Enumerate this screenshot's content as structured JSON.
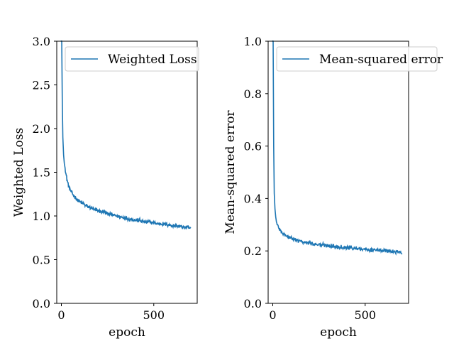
{
  "chart_data": [
    {
      "type": "line",
      "title": "",
      "xlabel": "epoch",
      "ylabel": "Weighted Loss",
      "xlim": [
        -25,
        735
      ],
      "ylim": [
        0.0,
        3.0
      ],
      "x_ticks": [
        0,
        500
      ],
      "x_tick_labels": [
        "0",
        "500"
      ],
      "y_ticks": [
        0.0,
        0.5,
        1.0,
        1.5,
        2.0,
        2.5,
        3.0
      ],
      "y_tick_labels": [
        "0.0",
        "0.5",
        "1.0",
        "1.5",
        "2.0",
        "2.5",
        "3.0"
      ],
      "grid": false,
      "legend": "top-right",
      "series": [
        {
          "name": "Weighted Loss",
          "color": "#1f77b4",
          "x": [
            0,
            2,
            5,
            8,
            12,
            16,
            20,
            25,
            30,
            35,
            40,
            50,
            60,
            70,
            80,
            90,
            100,
            120,
            140,
            160,
            180,
            200,
            220,
            240,
            260,
            280,
            300,
            320,
            340,
            360,
            380,
            400,
            420,
            440,
            460,
            480,
            500,
            520,
            540,
            560,
            580,
            600,
            620,
            640,
            660,
            680,
            700
          ],
          "y": [
            3.0,
            3.0,
            2.3,
            1.9,
            1.7,
            1.6,
            1.55,
            1.48,
            1.42,
            1.38,
            1.34,
            1.29,
            1.25,
            1.23,
            1.2,
            1.18,
            1.16,
            1.14,
            1.11,
            1.09,
            1.07,
            1.06,
            1.05,
            1.04,
            1.02,
            1.01,
            1.0,
            0.99,
            0.98,
            0.97,
            0.96,
            0.95,
            0.95,
            0.94,
            0.93,
            0.93,
            0.92,
            0.91,
            0.91,
            0.9,
            0.9,
            0.89,
            0.89,
            0.88,
            0.87,
            0.87,
            0.86
          ]
        }
      ]
    },
    {
      "type": "line",
      "title": "",
      "xlabel": "epoch",
      "ylabel": "Mean-squared error",
      "xlim": [
        -25,
        735
      ],
      "ylim": [
        0.0,
        1.0
      ],
      "x_ticks": [
        0,
        500
      ],
      "x_tick_labels": [
        "0",
        "500"
      ],
      "y_ticks": [
        0.0,
        0.2,
        0.4,
        0.6,
        0.8,
        1.0
      ],
      "y_tick_labels": [
        "0.0",
        "0.2",
        "0.4",
        "0.6",
        "0.8",
        "1.0"
      ],
      "grid": false,
      "legend": "top-right",
      "series": [
        {
          "name": "Mean-squared error",
          "color": "#1f77b4",
          "x": [
            0,
            2,
            5,
            8,
            12,
            16,
            20,
            25,
            30,
            35,
            40,
            50,
            60,
            70,
            80,
            90,
            100,
            120,
            140,
            160,
            180,
            200,
            220,
            240,
            260,
            280,
            300,
            320,
            340,
            360,
            380,
            400,
            420,
            440,
            460,
            480,
            500,
            520,
            540,
            560,
            580,
            600,
            620,
            640,
            660,
            680,
            700
          ],
          "y": [
            1.0,
            1.0,
            0.6,
            0.42,
            0.36,
            0.33,
            0.31,
            0.3,
            0.29,
            0.285,
            0.28,
            0.27,
            0.265,
            0.26,
            0.255,
            0.25,
            0.247,
            0.243,
            0.238,
            0.235,
            0.232,
            0.23,
            0.228,
            0.226,
            0.224,
            0.222,
            0.221,
            0.219,
            0.217,
            0.216,
            0.214,
            0.213,
            0.212,
            0.21,
            0.209,
            0.208,
            0.207,
            0.205,
            0.204,
            0.203,
            0.202,
            0.201,
            0.2,
            0.198,
            0.197,
            0.196,
            0.19
          ]
        }
      ]
    }
  ]
}
